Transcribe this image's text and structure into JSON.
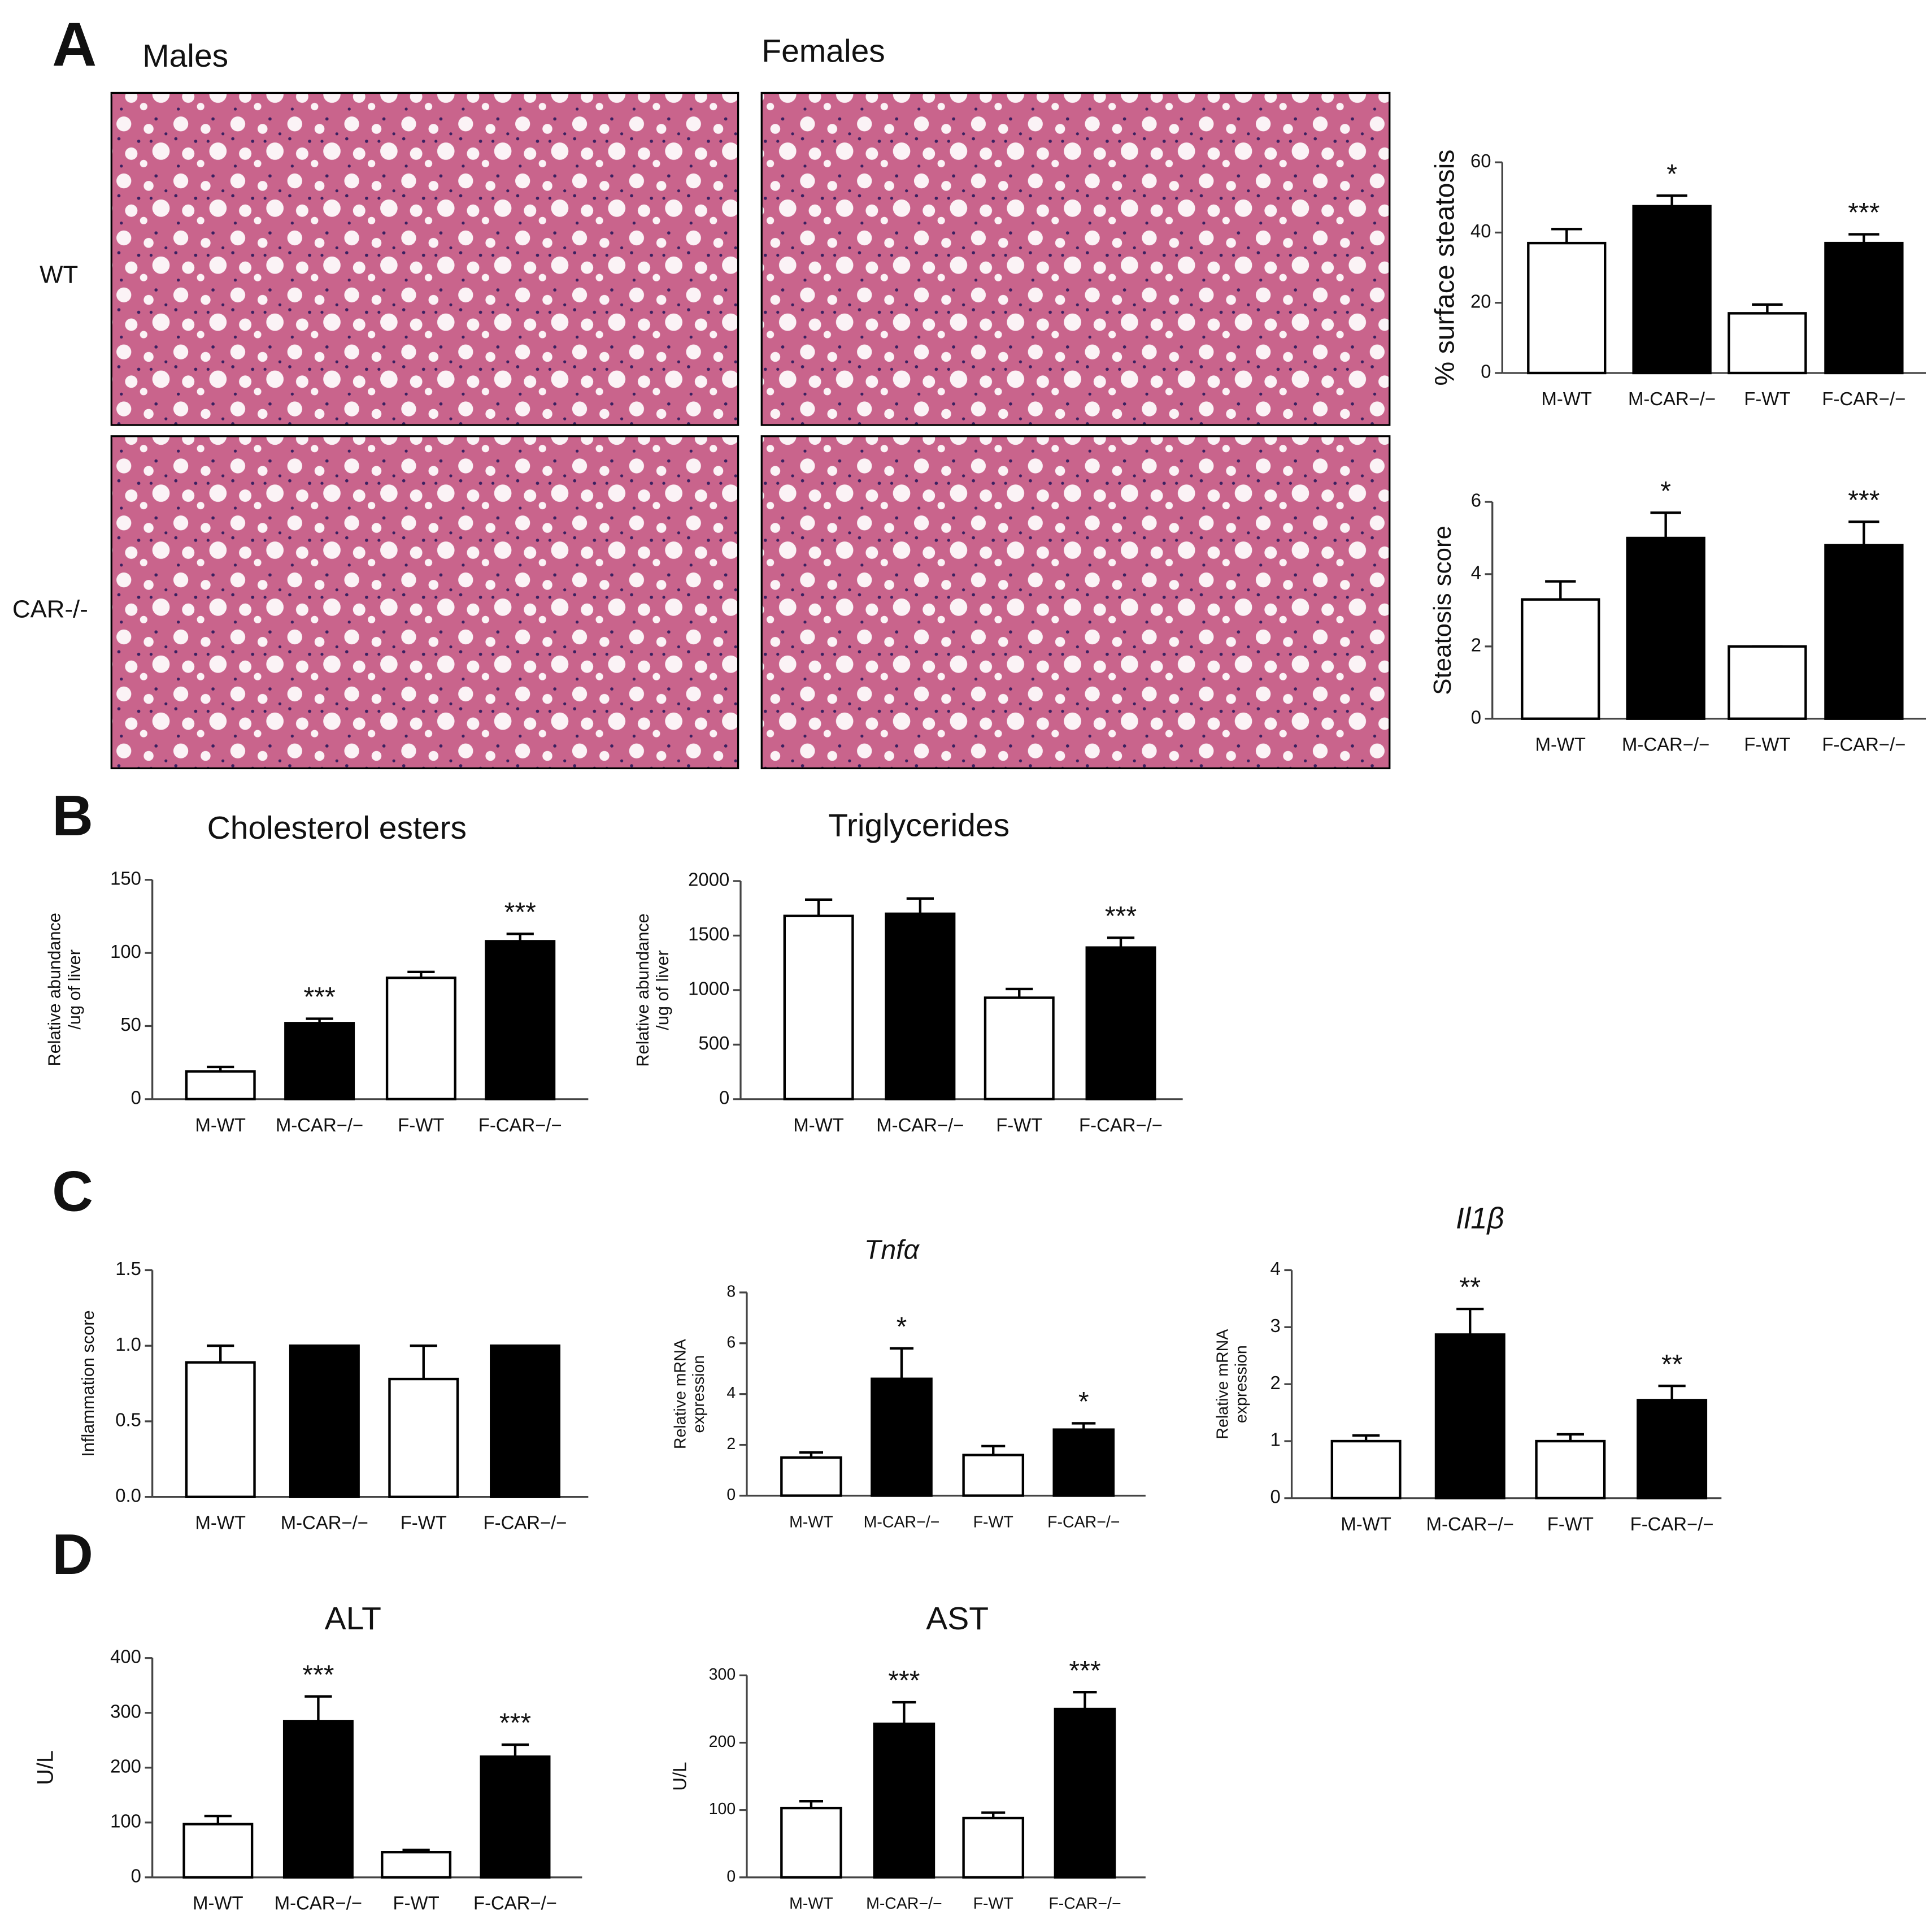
{
  "panel_labels": [
    "A",
    "B",
    "C",
    "D"
  ],
  "histology": {
    "columns": [
      "Males",
      "Females"
    ],
    "rows": [
      "WT",
      "CAR-/-"
    ]
  },
  "chart_data": [
    {
      "type": "bar",
      "ylabel": "% surface steatosis",
      "categories": [
        "M-WT",
        "M-CAR−/−",
        "F-WT",
        "F-CAR−/−"
      ],
      "values": [
        37,
        47.5,
        17,
        37
      ],
      "errors": [
        4,
        3,
        2.5,
        2.5
      ],
      "annotations": [
        null,
        "*",
        null,
        "***"
      ],
      "colors": [
        "#ffffff",
        "#000000",
        "#ffffff",
        "#000000"
      ],
      "ylim": [
        0,
        60
      ],
      "yticks": [
        0,
        20,
        40,
        60
      ]
    },
    {
      "type": "bar",
      "ylabel": "Steatosis score",
      "categories": [
        "M-WT",
        "M-CAR−/−",
        "F-WT",
        "F-CAR−/−"
      ],
      "values": [
        3.3,
        5,
        2,
        4.8
      ],
      "errors": [
        0.5,
        0.7,
        0,
        0.65
      ],
      "annotations": [
        null,
        "*",
        null,
        "***"
      ],
      "colors": [
        "#ffffff",
        "#000000",
        "#ffffff",
        "#000000"
      ],
      "ylim": [
        0,
        6
      ],
      "yticks": [
        0,
        2,
        4,
        6
      ]
    },
    {
      "type": "bar",
      "title": "Cholesterol esters",
      "ylabel": [
        "Relative abundance",
        "/ug of liver"
      ],
      "categories": [
        "M-WT",
        "M-CAR−/−",
        "F-WT",
        "F-CAR−/−"
      ],
      "values": [
        19,
        52,
        83,
        108
      ],
      "errors": [
        3,
        3,
        4,
        5
      ],
      "annotations": [
        null,
        "***",
        null,
        "***"
      ],
      "colors": [
        "#ffffff",
        "#000000",
        "#ffffff",
        "#000000"
      ],
      "ylim": [
        0,
        150
      ],
      "yticks": [
        0,
        50,
        100,
        150
      ]
    },
    {
      "type": "bar",
      "title": "Triglycerides",
      "ylabel": [
        "Relative abundance",
        "/ug of liver"
      ],
      "categories": [
        "M-WT",
        "M-CAR−/−",
        "F-WT",
        "F-CAR−/−"
      ],
      "values": [
        1680,
        1700,
        930,
        1390
      ],
      "errors": [
        150,
        140,
        80,
        90
      ],
      "annotations": [
        null,
        null,
        null,
        "***"
      ],
      "colors": [
        "#ffffff",
        "#000000",
        "#ffffff",
        "#000000"
      ],
      "ylim": [
        0,
        2000
      ],
      "yticks": [
        0,
        500,
        1000,
        1500,
        2000
      ]
    },
    {
      "type": "bar",
      "ylabel": "Inflammation score",
      "categories": [
        "M-WT",
        "M-CAR−/−",
        "F-WT",
        "F-CAR−/−"
      ],
      "values": [
        0.89,
        1.0,
        0.78,
        1.0
      ],
      "errors": [
        0.11,
        0,
        0.22,
        0
      ],
      "annotations": [
        null,
        null,
        null,
        null
      ],
      "colors": [
        "#ffffff",
        "#000000",
        "#ffffff",
        "#000000"
      ],
      "ylim": [
        0,
        1.5
      ],
      "yticks": [
        {
          "value": 0,
          "label": "0.0"
        },
        0.5,
        {
          "value": 1,
          "label": "1.0"
        },
        1.5
      ]
    },
    {
      "type": "bar",
      "title": "Tnfα",
      "title_italic": true,
      "ylabel": [
        "Relative mRNA",
        "expression"
      ],
      "categories": [
        "M-WT",
        "M-CAR−/−",
        "F-WT",
        "F-CAR−/−"
      ],
      "values": [
        1.5,
        4.6,
        1.6,
        2.6
      ],
      "errors": [
        0.2,
        1.2,
        0.35,
        0.25
      ],
      "annotations": [
        null,
        "*",
        null,
        "*"
      ],
      "colors": [
        "#ffffff",
        "#000000",
        "#ffffff",
        "#000000"
      ],
      "ylim": [
        0,
        8
      ],
      "yticks": [
        0,
        2,
        4,
        6,
        8
      ]
    },
    {
      "type": "bar",
      "title": "Il1β",
      "title_italic": true,
      "ylabel": [
        "Relative mRNA",
        "expression"
      ],
      "categories": [
        "M-WT",
        "M-CAR−/−",
        "F-WT",
        "F-CAR−/−"
      ],
      "values": [
        1.0,
        2.87,
        1.0,
        1.72
      ],
      "errors": [
        0.1,
        0.45,
        0.12,
        0.25
      ],
      "annotations": [
        null,
        "**",
        null,
        "**"
      ],
      "colors": [
        "#ffffff",
        "#000000",
        "#ffffff",
        "#000000"
      ],
      "ylim": [
        0,
        4
      ],
      "yticks": [
        0,
        1,
        2,
        3,
        4
      ]
    },
    {
      "type": "bar",
      "title": "ALT",
      "ylabel": "U/L",
      "categories": [
        "M-WT",
        "M-CAR−/−",
        "F-WT",
        "F-CAR−/−"
      ],
      "values": [
        97,
        285,
        46,
        220
      ],
      "errors": [
        15,
        45,
        4,
        22
      ],
      "annotations": [
        null,
        "***",
        null,
        "***"
      ],
      "colors": [
        "#ffffff",
        "#000000",
        "#ffffff",
        "#000000"
      ],
      "ylim": [
        0,
        400
      ],
      "yticks": [
        0,
        100,
        200,
        300,
        400
      ]
    },
    {
      "type": "bar",
      "title": "AST",
      "ylabel": "U/L",
      "categories": [
        "M-WT",
        "M-CAR−/−",
        "F-WT",
        "F-CAR−/−"
      ],
      "values": [
        103,
        228,
        88,
        250
      ],
      "errors": [
        10,
        32,
        8,
        25
      ],
      "annotations": [
        null,
        "***",
        null,
        "***"
      ],
      "colors": [
        "#ffffff",
        "#000000",
        "#ffffff",
        "#000000"
      ],
      "ylim": [
        0,
        300
      ],
      "yticks": [
        0,
        100,
        200,
        300
      ]
    }
  ]
}
